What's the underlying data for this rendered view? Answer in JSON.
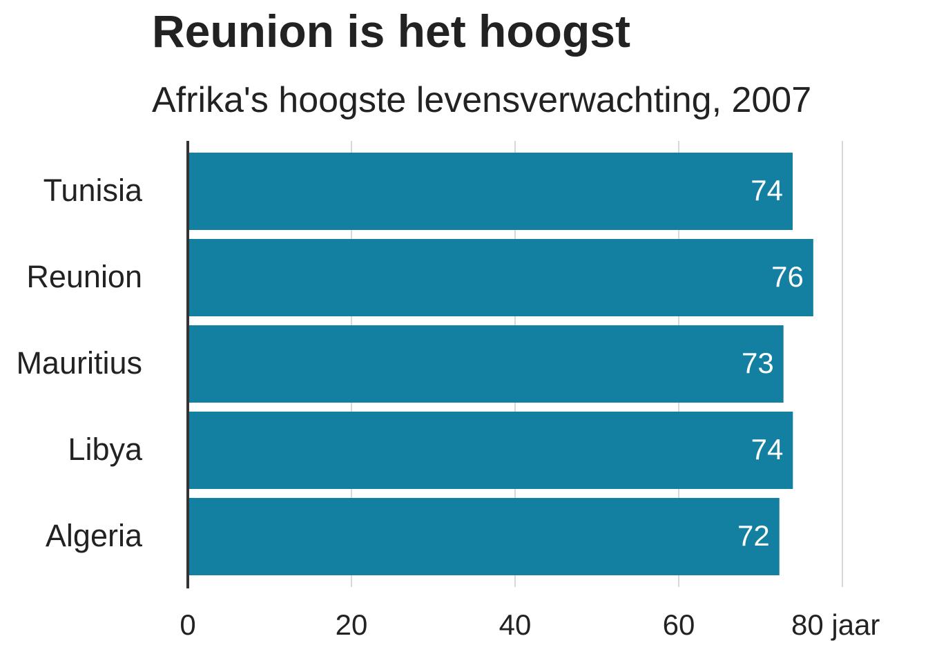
{
  "chart_data": {
    "type": "bar",
    "orientation": "horizontal",
    "title": "Reunion is het hoogst",
    "subtitle": "Afrika's hoogste levensverwachting, 2007",
    "categories": [
      "Tunisia",
      "Reunion",
      "Mauritius",
      "Libya",
      "Algeria"
    ],
    "values": [
      73.923,
      76.442,
      72.801,
      73.952,
      72.301
    ],
    "value_labels": [
      "74",
      "76",
      "73",
      "74",
      "72"
    ],
    "xlim": [
      0,
      80
    ],
    "x_ticks": [
      0,
      20,
      40,
      60,
      80
    ],
    "x_tick_labels": [
      "0",
      "20",
      "40",
      "60",
      "80 jaar"
    ],
    "xlabel": "",
    "ylabel": "",
    "grid": "vertical",
    "legend": "none",
    "colors": {
      "bar": "#1380A1",
      "grid": "#cbcbcb",
      "axis": "#333333",
      "text": "#222222",
      "value_text": "#ffffff"
    }
  }
}
